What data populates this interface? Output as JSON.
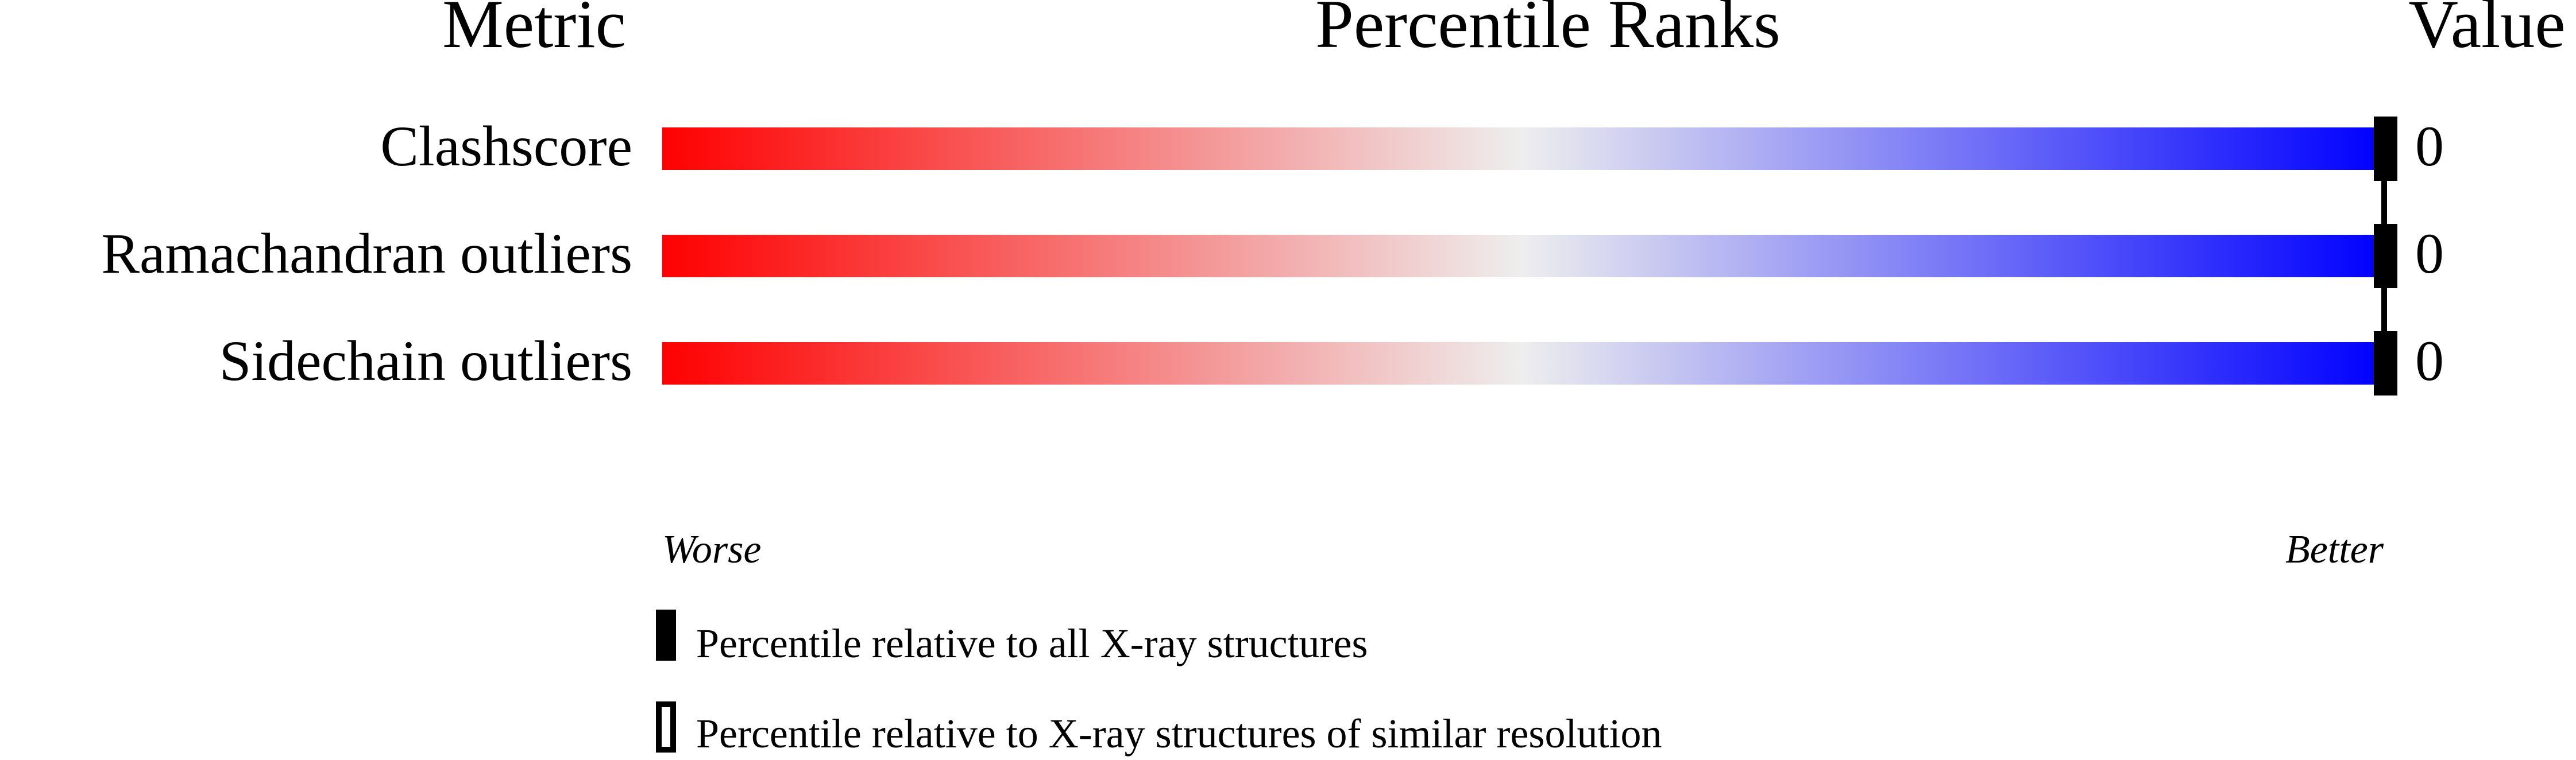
{
  "chart_data": {
    "type": "bar",
    "headers": {
      "metric": "Metric",
      "ranks": "Percentile Ranks",
      "value": "Value"
    },
    "categories": [
      "Clashscore",
      "Ramachandran outliers",
      "Sidechain outliers"
    ],
    "values": [
      "0",
      "0",
      "0"
    ],
    "percentile_all": [
      100,
      100,
      100
    ],
    "xlim": [
      0,
      100
    ],
    "axis_labels": {
      "left": "Worse",
      "right": "Better"
    },
    "gradient_colors": {
      "worse": "#ff0000",
      "middle": "#eeeeee",
      "better": "#0000ff"
    },
    "legend": [
      {
        "marker": "filled",
        "label": "Percentile relative to all X-ray structures"
      },
      {
        "marker": "outline",
        "label": "Percentile relative to X-ray structures of similar resolution"
      }
    ],
    "legend_placement": "bottom-left"
  }
}
